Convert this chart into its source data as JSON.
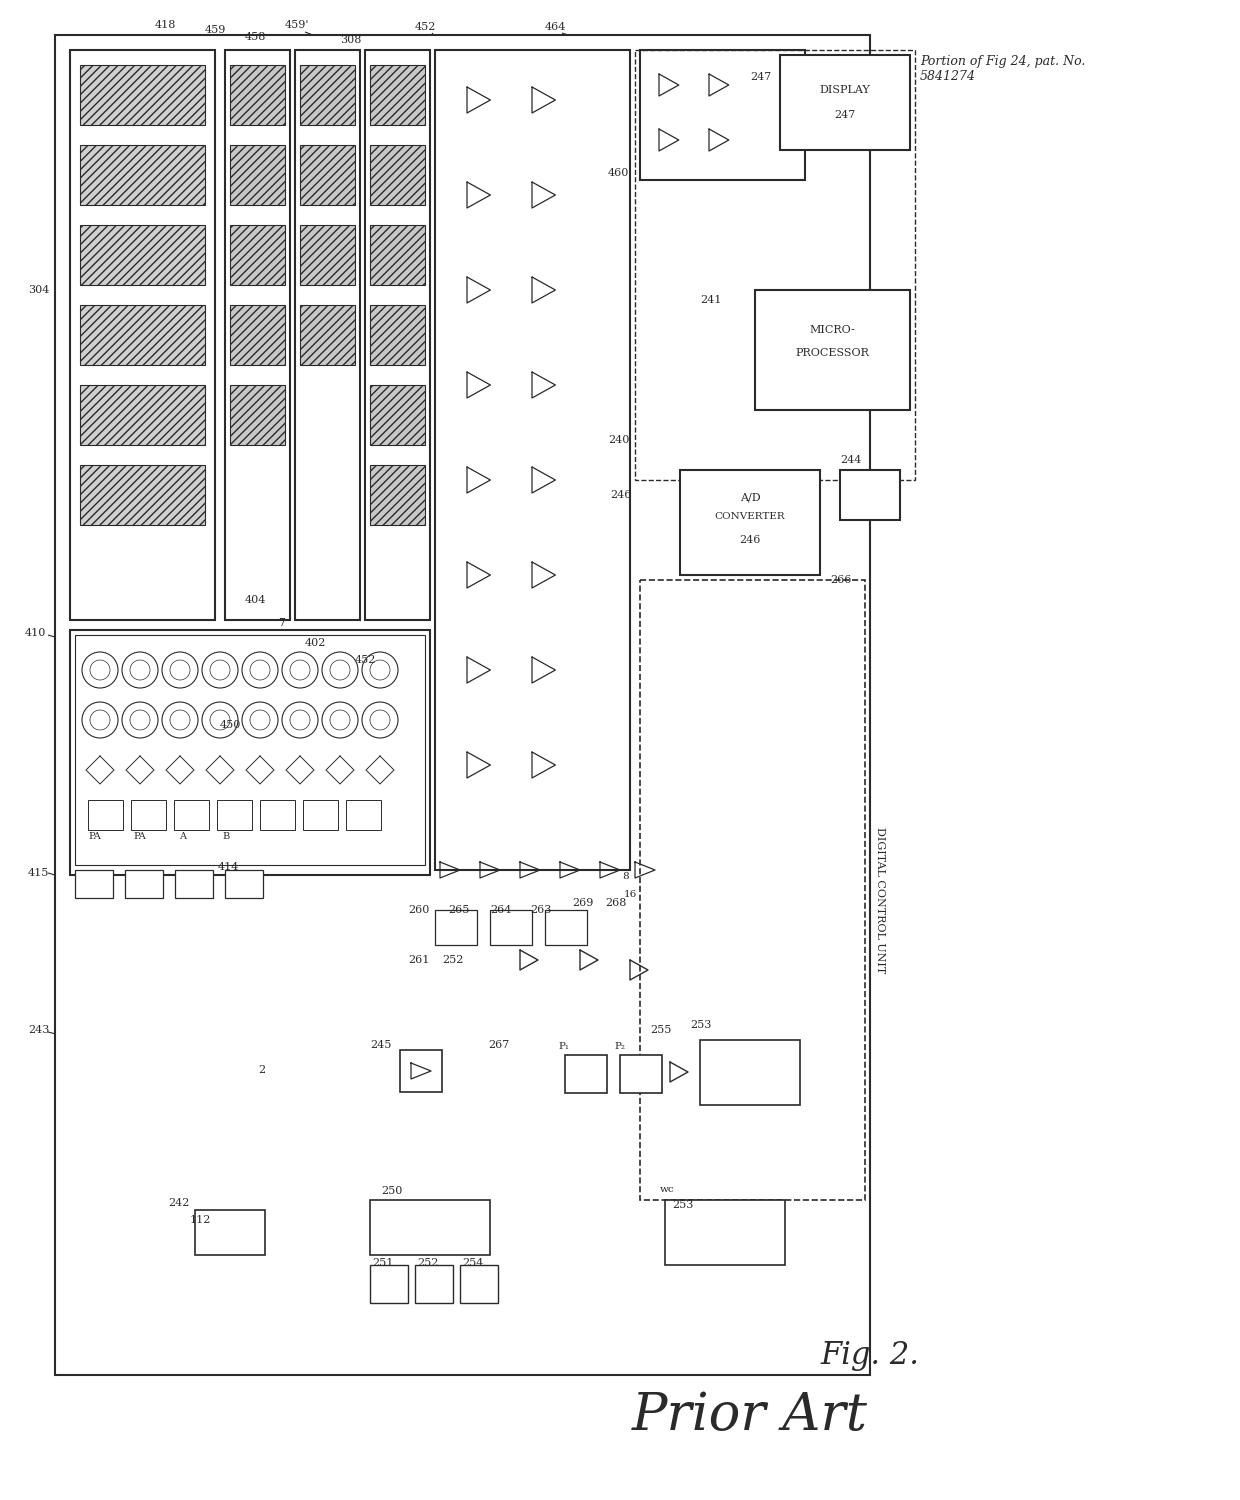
{
  "title": "Fig. 2.",
  "prior_art_label": "Prior Art",
  "patent_ref": "Portion of Fig 24, pat. No.\n5841274",
  "bg_color": "#ffffff",
  "line_color": "#2a2a2a",
  "fig_width": 12.4,
  "fig_height": 15.0
}
